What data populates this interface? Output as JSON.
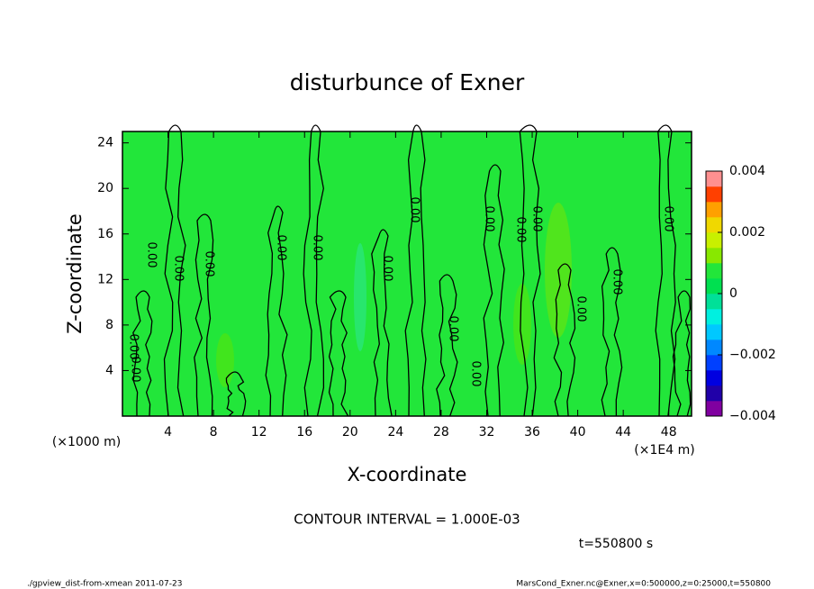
{
  "chart_data": {
    "type": "contour",
    "title": "disturbunce of Exner",
    "x_label": "X-coordinate",
    "y_label": "Z-coordinate",
    "y_unit": "(×1000 m)",
    "x_unit": "(×1E4 m)",
    "xlim": [
      0,
      50
    ],
    "xticks": [
      4,
      8,
      12,
      16,
      20,
      24,
      28,
      32,
      36,
      40,
      44,
      48
    ],
    "ylim": [
      0,
      25
    ],
    "yticks": [
      4,
      8,
      12,
      16,
      20,
      24
    ],
    "field_color": "#22e63a",
    "colorbar_lim": [
      -0.004,
      0.004
    ],
    "colorbar_ticks": [
      {
        "value": -0.004,
        "label": "−0.004"
      },
      {
        "value": -0.002,
        "label": "−0.002"
      },
      0,
      0.002,
      0.004
    ],
    "colorbar_colors": [
      "#8000a0",
      "#2000a8",
      "#0000e0",
      "#0040ff",
      "#0088ff",
      "#00c8ff",
      "#00f0e0",
      "#00e098",
      "#00e050",
      "#22e63a",
      "#88e800",
      "#c8f000",
      "#f0d800",
      "#ffa000",
      "#ff4000",
      "#ff9090"
    ],
    "contour_labels": [
      "0.00",
      "0.00",
      "0.00",
      "0.00",
      "0.00",
      "0.00",
      "0.00",
      "0.00",
      "0.00",
      "0.00",
      "0.00",
      "0.00",
      "0.00",
      "0.00",
      "0.00",
      "0.00",
      "0.00"
    ],
    "contour_interval": "CONTOUR INTERVAL = 1.000E-03",
    "time": "t=550800 s",
    "footer_left": "./gpview_dist-from-xmean  2011-07-23",
    "footer_right": "MarsCond_Exner.nc@Exner,x=0:500000,z=0:25000,t=550800"
  }
}
